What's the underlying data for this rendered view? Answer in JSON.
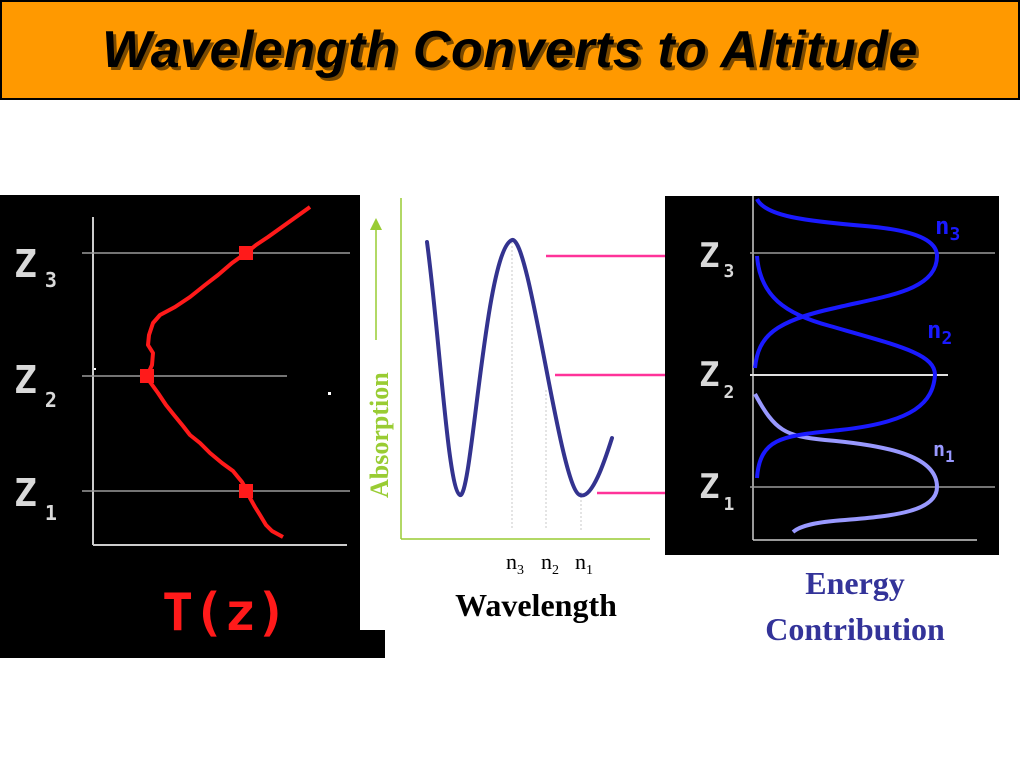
{
  "title": "Wavelength Converts to Altitude",
  "colors": {
    "title_bg": "#ff9900",
    "temperature_curve": "#ff1a1a",
    "absorption_curve": "#33338f",
    "axis_green": "#99cc33",
    "arrow_pink": "#ff3399",
    "energy_blue": "#1a1aff",
    "energy_light": "#9999ff",
    "caption_blue": "#333399"
  },
  "left_panel": {
    "levels": [
      {
        "main": "Z",
        "sub": "3"
      },
      {
        "main": "Z",
        "sub": "2"
      },
      {
        "main": "Z",
        "sub": "1"
      }
    ],
    "curve_label": "T(z)"
  },
  "middle_panel": {
    "y_label": "Absorption",
    "x_label": "Wavelength",
    "channels": [
      {
        "main": "n",
        "sub": "3"
      },
      {
        "main": "n",
        "sub": "2"
      },
      {
        "main": "n",
        "sub": "1"
      }
    ]
  },
  "right_panel": {
    "levels": [
      {
        "main": "Z",
        "sub": "3"
      },
      {
        "main": "Z",
        "sub": "2"
      },
      {
        "main": "Z",
        "sub": "1"
      }
    ],
    "curves": [
      {
        "main": "n",
        "sub": "3"
      },
      {
        "main": "n",
        "sub": "2"
      },
      {
        "main": "n",
        "sub": "1"
      }
    ],
    "caption_line1": "Energy",
    "caption_line2": "Contribution"
  }
}
